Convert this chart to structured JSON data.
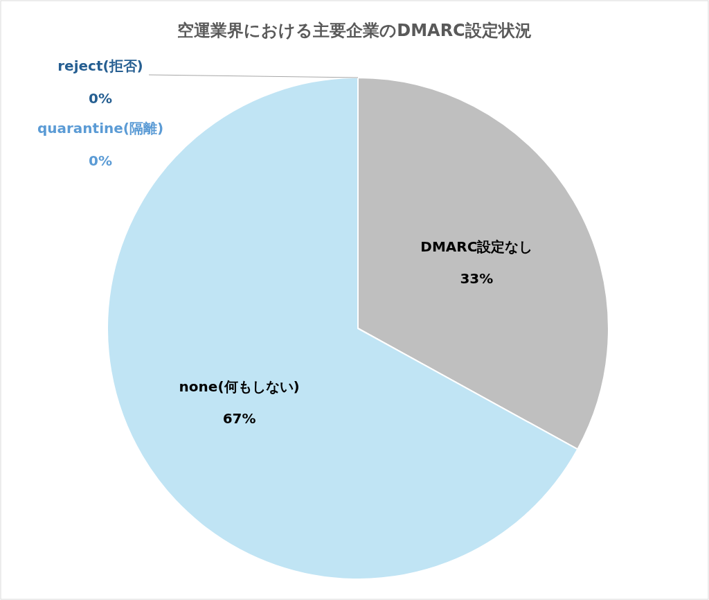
{
  "chart_data": {
    "type": "pie",
    "title": "空運業界における主要企業のDMARC設定状況",
    "categories": [
      "DMARC設定なし",
      "none(何もしない)",
      "quarantine(隔離)",
      "reject(拒否)"
    ],
    "values": [
      33,
      67,
      0,
      0
    ],
    "value_labels": [
      "33%",
      "67%",
      "0%",
      "0%"
    ],
    "colors": [
      "#bfbfbf",
      "#c0e4f4",
      "#5b9bd5",
      "#255e91"
    ]
  }
}
